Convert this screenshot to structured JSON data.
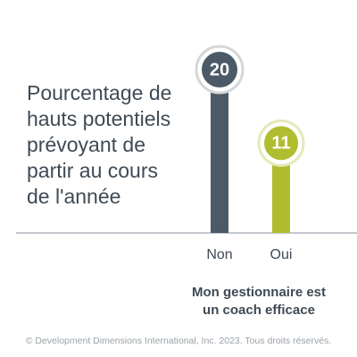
{
  "chart_data": {
    "type": "bar",
    "title_lines": [
      "Pourcentage de",
      "hauts potentiels",
      "prévoyant de",
      "partir au cours",
      "de l'année"
    ],
    "categories": [
      "Non",
      "Oui"
    ],
    "values": [
      20,
      11
    ],
    "xlabel_lines": [
      "Mon gestionnaire est",
      "un coach efficace"
    ],
    "ylabel": "",
    "ylim": [
      0,
      20
    ],
    "colors": [
      "#4b5a66",
      "#b0bd2f"
    ],
    "grid": false,
    "legend": "none"
  },
  "footer": "© Development Dimensions International, Inc. 2023. Tous droits réservés."
}
